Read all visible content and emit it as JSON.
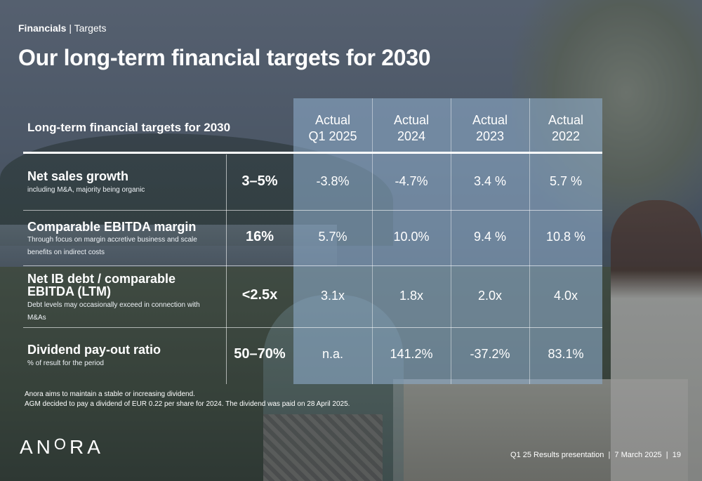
{
  "breadcrumb": {
    "section": "Financials",
    "separator": "|",
    "page": "Targets"
  },
  "title": "Our long-term financial targets for 2030",
  "table": {
    "heading": "Long-term financial targets for 2030",
    "columns": [
      {
        "line1": "Actual",
        "line2": "Q1 2025"
      },
      {
        "line1": "Actual",
        "line2": "2024"
      },
      {
        "line1": "Actual",
        "line2": "2023"
      },
      {
        "line1": "Actual",
        "line2": "2022"
      }
    ],
    "rows": [
      {
        "title": "Net sales growth",
        "subtitle": "including M&A, majority being organic",
        "target": "3–5%",
        "values": [
          "-3.8%",
          "-4.7%",
          "3.4 %",
          "5.7 %"
        ]
      },
      {
        "title": "Comparable EBITDA margin",
        "subtitle": "Through focus on margin accretive business and scale benefits on indirect costs",
        "target": "16%",
        "values": [
          "5.7%",
          "10.0%",
          "9.4 %",
          "10.8 %"
        ]
      },
      {
        "title": "Net IB debt / comparable EBITDA (LTM)",
        "subtitle": "Debt levels may occasionally exceed in connection with M&As",
        "target": "<2.5x",
        "values": [
          "3.1x",
          "1.8x",
          "2.0x",
          "4.0x"
        ]
      },
      {
        "title": "Dividend pay-out ratio",
        "subtitle": "% of result for the period",
        "target": "50–70%",
        "values": [
          "n.a.",
          "141.2%",
          "-37.2%",
          "83.1%"
        ]
      }
    ]
  },
  "notes": [
    "Anora aims to maintain a stable or increasing dividend.",
    "AGM decided to pay a dividend of EUR 0.22 per share for 2024. The dividend was paid on 28 April 2025."
  ],
  "logo": {
    "text_a": "AN",
    "text_o": "O",
    "text_b": "RA"
  },
  "footer": "Q1 25 Results presentation  |  7 March 2025  |  19"
}
